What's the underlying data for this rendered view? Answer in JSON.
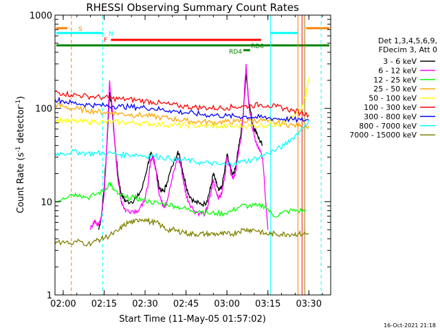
{
  "chart_data": {
    "type": "line",
    "title": "RHESSI Observing Summary Count Rates",
    "xlabel": "Start Time (11-May-05 01:57:02)",
    "ylabel_main": "Count Rate (s",
    "ylabel_sup1": "-1",
    "ylabel_mid": " detector",
    "ylabel_sup2": "-1",
    "ylabel_end": ")",
    "yscale": "log",
    "xlim": [
      117,
      218
    ],
    "ylim": [
      1,
      1000
    ],
    "x_ticks": [
      {
        "v": 120,
        "label": "02:00"
      },
      {
        "v": 135,
        "label": "02:15"
      },
      {
        "v": 150,
        "label": "02:30"
      },
      {
        "v": 165,
        "label": "02:45"
      },
      {
        "v": 180,
        "label": "03:00"
      },
      {
        "v": 195,
        "label": "03:15"
      },
      {
        "v": 210,
        "label": "03:30"
      }
    ],
    "y_ticks": [
      {
        "v": 1,
        "label": "1"
      },
      {
        "v": 10,
        "label": "10"
      },
      {
        "v": 100,
        "label": "100"
      },
      {
        "v": 1000,
        "label": "1000"
      }
    ],
    "legend_header": [
      "Det 1,3,4,5,6,9,",
      "FDecim 3, Att 0"
    ],
    "legend_position": "right",
    "timestamp": "16-Oct-2021 21:18",
    "series": [
      {
        "name": "3 - 6 keV",
        "color": "#000000",
        "x": [
          133,
          134,
          135,
          136,
          137,
          138,
          139,
          140,
          141,
          142,
          143,
          145,
          147,
          149,
          151,
          152,
          153,
          154,
          155,
          156,
          157,
          158,
          160,
          162,
          163,
          164,
          165,
          166,
          168,
          170,
          172,
          173,
          174,
          175,
          176,
          177,
          178,
          179,
          180,
          181,
          182,
          183,
          184,
          185,
          186,
          187,
          188,
          189,
          190,
          191,
          192,
          193
        ],
        "values": [
          5,
          7,
          14,
          40,
          150,
          90,
          40,
          20,
          13,
          11,
          10,
          10,
          11,
          14,
          25,
          32,
          30,
          22,
          15,
          13,
          13,
          16,
          24,
          35,
          28,
          20,
          15,
          12,
          10,
          9.5,
          9.5,
          11,
          14,
          20,
          16,
          13,
          14,
          20,
          32,
          25,
          20,
          22,
          35,
          50,
          90,
          250,
          120,
          80,
          60,
          55,
          45,
          40
        ]
      },
      {
        "name": "6 - 12 keV",
        "color": "#ff00ff",
        "x": [
          130,
          131,
          132,
          133,
          134,
          135,
          136,
          137,
          138,
          139,
          140,
          141,
          142,
          143,
          145,
          147,
          149,
          151,
          152,
          153,
          154,
          155,
          156,
          157,
          158,
          160,
          162,
          163,
          164,
          165,
          166,
          168,
          170,
          172,
          173,
          174,
          175,
          176,
          177,
          178,
          179,
          180,
          181,
          182,
          183,
          184,
          185,
          186,
          187,
          188,
          189,
          190,
          191,
          192,
          193,
          195
        ],
        "values": [
          5,
          6,
          6,
          5.5,
          7,
          12,
          40,
          200,
          95,
          40,
          18,
          11,
          9,
          8,
          8,
          8,
          9,
          14,
          28,
          30,
          22,
          13,
          10,
          9,
          10,
          18,
          30,
          25,
          17,
          12,
          10,
          8,
          7.5,
          7.5,
          9,
          12,
          17,
          13,
          11,
          12,
          17,
          30,
          24,
          18,
          20,
          30,
          45,
          85,
          300,
          110,
          70,
          50,
          40,
          35,
          30,
          5
        ]
      },
      {
        "name": "12 - 25 keV",
        "color": "#00ff00",
        "x": [
          117,
          120,
          123,
          126,
          129,
          132,
          135,
          137,
          138,
          140,
          143,
          146,
          149,
          152,
          155,
          158,
          161,
          164,
          167,
          170,
          173,
          176,
          179,
          182,
          185,
          188,
          191,
          194,
          197,
          200,
          203,
          206,
          209
        ],
        "values": [
          10,
          11,
          12,
          12,
          11,
          12,
          13,
          16,
          14,
          12,
          11,
          11,
          10.5,
          10,
          9.5,
          9.5,
          9,
          8.5,
          8,
          8,
          7.5,
          7.5,
          7.5,
          8,
          9,
          9,
          9,
          9,
          7,
          7.5,
          8,
          8,
          8
        ]
      },
      {
        "name": "25 - 50 keV",
        "color": "#ffa500",
        "x": [
          117,
          120,
          123,
          126,
          129,
          132,
          135,
          138,
          141,
          144,
          147,
          150,
          153,
          156,
          159,
          162,
          165,
          168,
          171,
          174,
          177,
          180,
          183,
          186,
          189,
          192,
          195,
          198,
          201,
          204,
          207,
          210
        ],
        "values": [
          110,
          105,
          100,
          98,
          95,
          93,
          90,
          90,
          88,
          86,
          85,
          84,
          82,
          80,
          78,
          76,
          74,
          72,
          72,
          71,
          71,
          72,
          72,
          73,
          74,
          75,
          72,
          70,
          68,
          66,
          65,
          65
        ]
      },
      {
        "name": "50 - 100 keV",
        "color": "#ffff00",
        "x": [
          117,
          120,
          123,
          126,
          129,
          132,
          135,
          138,
          141,
          144,
          147,
          150,
          153,
          156,
          159,
          162,
          165,
          168,
          171,
          174,
          177,
          180,
          183,
          186,
          189,
          192,
          195,
          198,
          201,
          204,
          207,
          209,
          210
        ],
        "values": [
          75,
          74,
          73,
          72,
          72,
          72,
          71,
          71,
          71,
          70,
          70,
          69,
          68,
          67,
          67,
          66,
          66,
          65,
          65,
          65,
          64,
          64,
          64,
          65,
          65,
          66,
          66,
          68,
          72,
          80,
          95,
          140,
          210
        ]
      },
      {
        "name": "100 - 300 keV",
        "color": "#ff0000",
        "x": [
          117,
          120,
          123,
          126,
          129,
          132,
          135,
          138,
          141,
          144,
          147,
          150,
          153,
          156,
          159,
          162,
          165,
          168,
          171,
          174,
          177,
          180,
          183,
          186,
          189,
          192,
          195,
          198,
          201,
          204,
          207,
          210
        ],
        "values": [
          150,
          145,
          140,
          138,
          135,
          133,
          130,
          128,
          126,
          125,
          123,
          120,
          117,
          113,
          110,
          107,
          105,
          103,
          102,
          101,
          101,
          102,
          104,
          105,
          107,
          110,
          108,
          104,
          100,
          95,
          90,
          85
        ]
      },
      {
        "name": "300 - 800 keV",
        "color": "#0000ff",
        "x": [
          117,
          120,
          123,
          126,
          129,
          132,
          135,
          138,
          141,
          144,
          147,
          150,
          153,
          156,
          159,
          162,
          165,
          168,
          171,
          174,
          177,
          180,
          183,
          186,
          189,
          192,
          195,
          198,
          201,
          204,
          207,
          210
        ],
        "values": [
          125,
          120,
          115,
          112,
          110,
          108,
          107,
          106,
          105,
          104,
          103,
          102,
          100,
          97,
          95,
          92,
          90,
          88,
          86,
          85,
          84,
          83,
          82,
          82,
          81,
          80,
          79,
          78,
          77,
          76,
          75,
          75
        ]
      },
      {
        "name": "800 - 7000 keV",
        "color": "#00ffff",
        "x": [
          117,
          120,
          123,
          126,
          129,
          132,
          135,
          138,
          141,
          144,
          147,
          150,
          153,
          156,
          159,
          162,
          165,
          168,
          171,
          174,
          177,
          180,
          183,
          186,
          189,
          192,
          195,
          198,
          201,
          204,
          207,
          210
        ],
        "values": [
          33,
          33,
          34,
          34,
          33,
          33,
          33,
          33,
          32,
          32,
          32,
          31,
          31,
          30,
          29,
          28,
          28,
          27,
          26,
          26,
          25,
          25,
          26,
          27,
          28,
          30,
          33,
          36,
          40,
          48,
          58,
          75
        ]
      },
      {
        "name": "7000 - 15000 keV",
        "color": "#808000",
        "x": [
          117,
          120,
          123,
          126,
          129,
          132,
          134,
          136,
          138,
          140,
          142,
          144,
          146,
          148,
          150,
          152,
          154,
          156,
          158,
          160,
          162,
          164,
          166,
          168,
          170,
          172,
          174,
          176,
          178,
          180,
          182,
          184,
          186,
          188,
          190,
          192,
          194,
          196,
          198,
          200,
          202,
          204,
          206,
          208,
          210
        ],
        "values": [
          3.5,
          3.8,
          3.5,
          3.8,
          3.5,
          3.8,
          4,
          4.2,
          4.5,
          4.8,
          5.5,
          6,
          6,
          6.5,
          6.5,
          6,
          6,
          5.5,
          5,
          5,
          4.8,
          4.8,
          4.5,
          4.5,
          4.5,
          4.5,
          4.5,
          4.5,
          4.5,
          4.5,
          4.5,
          4.8,
          5,
          5,
          5,
          4.8,
          4.5,
          4.5,
          4.5,
          4.5,
          4.5,
          4.5,
          4.5,
          4.5,
          4.5
        ]
      }
    ],
    "annotations": [
      {
        "label": "S",
        "color": "#ff8000"
      },
      {
        "label": "N",
        "color": "#00ffff"
      },
      {
        "label": "F",
        "color": "#ff0000"
      },
      {
        "label": "RD0",
        "color": "#008000"
      },
      {
        "label": "RD4",
        "color": "#008000"
      }
    ]
  }
}
